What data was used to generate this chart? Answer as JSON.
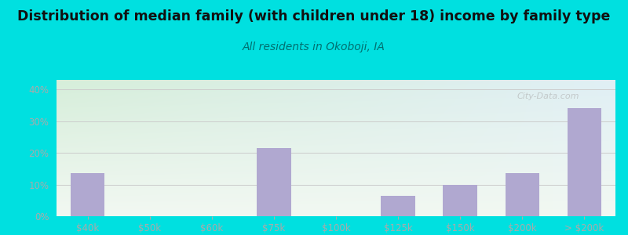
{
  "title": "Distribution of median family (with children under 18) income by family type",
  "subtitle": "All residents in Okoboji, IA",
  "categories": [
    "$40k",
    "$50k",
    "$60k",
    "$75k",
    "$100k",
    "$125k",
    "$150k",
    "$200k",
    "> $200k"
  ],
  "values": [
    13.5,
    0,
    0,
    21.5,
    0,
    6.5,
    10.0,
    13.5,
    34.0
  ],
  "bar_color": "#b0a8d0",
  "title_fontsize": 12.5,
  "subtitle_fontsize": 10,
  "subtitle_color": "#007070",
  "title_color": "#111111",
  "ylabel_ticks": [
    "0%",
    "10%",
    "20%",
    "30%",
    "40%"
  ],
  "ytick_vals": [
    0,
    10,
    20,
    30,
    40
  ],
  "ylim": [
    0,
    43
  ],
  "bg_outer": "#00e0e0",
  "bg_plot_top_left": "#d6eeda",
  "bg_plot_bottom_right": "#f0f5ef",
  "bg_plot_top_right": "#ddeef5",
  "grid_color": "#cccccc",
  "tick_label_color": "#aaaaaa",
  "watermark": "City-Data.com",
  "watermark_color": "#aaaaaa"
}
